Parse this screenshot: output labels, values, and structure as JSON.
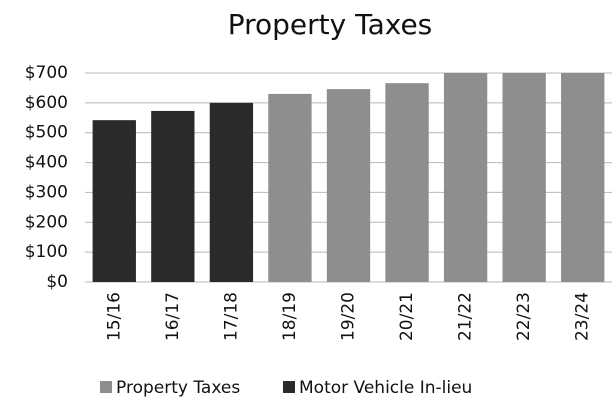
{
  "chart_data": {
    "type": "bar",
    "title": "Property Taxes",
    "categories": [
      "15/16",
      "16/17",
      "17/18",
      "18/19",
      "19/20",
      "20/21",
      "21/22",
      "22/23",
      "23/24"
    ],
    "series": [
      {
        "name": "Property Taxes",
        "color": "#8e8e8e",
        "values": [
          null,
          null,
          null,
          630,
          646,
          666,
          700,
          700,
          700
        ]
      },
      {
        "name": "Motor Vehicle In-lieu",
        "color": "#2a2a2a",
        "values": [
          542,
          573,
          600,
          null,
          null,
          null,
          null,
          null,
          null
        ]
      }
    ],
    "ylim": [
      0,
      700
    ],
    "yticks": [
      {
        "value": 0,
        "label": "$0"
      },
      {
        "value": 100,
        "label": "$100"
      },
      {
        "value": 200,
        "label": "$200"
      },
      {
        "value": 300,
        "label": "$300"
      },
      {
        "value": 400,
        "label": "$400"
      },
      {
        "value": 500,
        "label": "$500"
      },
      {
        "value": 600,
        "label": "$600"
      },
      {
        "value": 700,
        "label": "$700"
      }
    ],
    "grid": true,
    "legend": "bottom"
  }
}
